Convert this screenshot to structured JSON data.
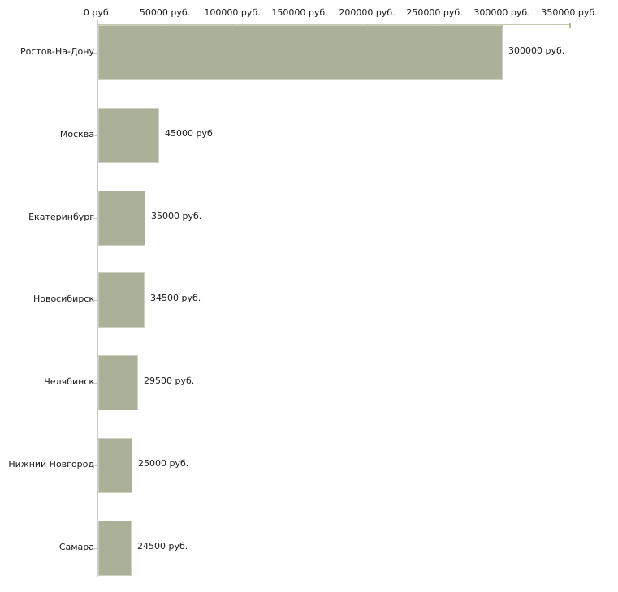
{
  "chart_data": {
    "type": "bar",
    "orientation": "horizontal",
    "title": "",
    "xlabel": "",
    "ylabel": "",
    "unit": "руб.",
    "categories": [
      "Ростов-На-Дону",
      "Москва",
      "Екатеринбург",
      "Новосибирск",
      "Челябинск",
      "Нижний Новгород",
      "Самара"
    ],
    "values": [
      300000,
      45000,
      35000,
      34500,
      29500,
      25000,
      24500
    ],
    "value_labels": [
      "300000 руб.",
      "45000 руб.",
      "35000 руб.",
      "34500 руб.",
      "29500 руб.",
      "25000 руб.",
      "24500 руб."
    ],
    "x_axis": {
      "position": "top",
      "min": 0,
      "max": 350000,
      "tick_values": [
        0,
        50000,
        100000,
        150000,
        200000,
        250000,
        300000,
        350000
      ],
      "tick_labels": [
        "0 руб.",
        "50000 руб.",
        "100000 руб.",
        "150000 руб.",
        "200000 руб.",
        "250000 руб.",
        "300000 руб.",
        "350000 руб."
      ]
    },
    "grid": false,
    "legend": false,
    "colors": {
      "bar_fill": "#abb098",
      "bar_border": "#ced1c2",
      "top_axis_line": "#c6c8ae",
      "top_tick": "#b5b896",
      "left_axis_line": "#c9c9c9",
      "category_tick": "#d3c8b2",
      "text": "#1a1a1a",
      "background": "#ffffff"
    }
  }
}
